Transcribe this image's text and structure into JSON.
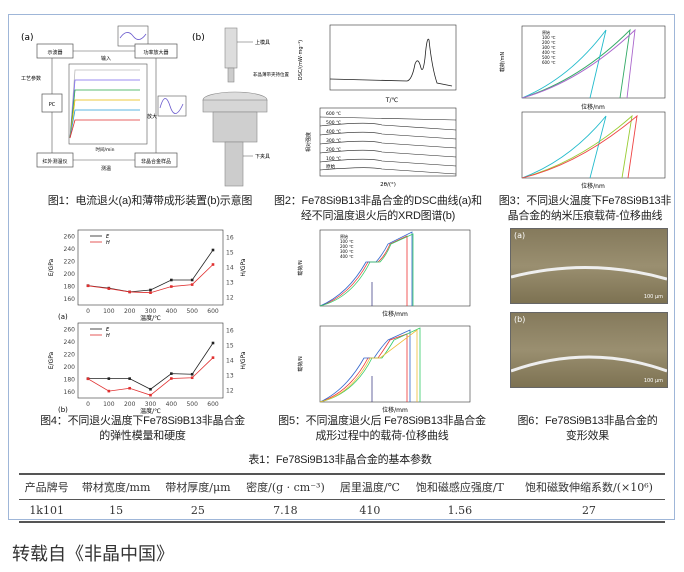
{
  "fig1": {
    "caption": "图1：电流退火(a)和薄带成形装置(b)示意图",
    "labels": {
      "a": "(a)",
      "b": "(b)",
      "signal_gen": "示波器",
      "amplifier": "功率放大器",
      "input": "输入",
      "amplify": "放大",
      "pc": "PC",
      "params": "工艺参数",
      "sample": "非晶合金样品",
      "thermometer": "红外测温仪",
      "measure": "测温",
      "upper": "上模具",
      "lower": "下夹具",
      "ribbon": "非晶薄带夹持位置",
      "inset_xlabel": "时间/min",
      "inset_ylabel": "温度/℃"
    }
  },
  "fig2": {
    "caption_line1": "图2：Fe78Si9B13非晶合金的DSC曲线(a)和",
    "caption_line2": "经不同温度退火后的XRD图谱(b)",
    "a_ylabel": "DSC/(mW·mg⁻¹)",
    "a_xlabel": "T/℃",
    "b_xlabel": "2θ/(°)",
    "b_ylabel": "相对强度",
    "b_labels": [
      "600 ℃",
      "500 ℃",
      "400 ℃",
      "300 ℃",
      "200 ℃",
      "100 ℃",
      "原始"
    ]
  },
  "fig3": {
    "caption_line1": "图3：不同退火温度下Fe78Si9B13非",
    "caption_line2": "晶合金的纳米压痕载荷-位移曲线",
    "xlabel": "位移/nm",
    "ylabel": "载荷/mN",
    "legend": [
      "原始",
      "100 ℃",
      "200 ℃",
      "300 ℃",
      "400 ℃",
      "500 ℃",
      "600 ℃"
    ]
  },
  "fig4": {
    "caption_line1": "图4：不同退火温度下Fe78Si9B13非晶合金",
    "caption_line2": "的弹性模量和硬度"
  },
  "fig5": {
    "caption_line1": "图5：不同温度退火后 Fe78Si9B13非晶合金",
    "caption_line2": "成形过程中的载荷-位移曲线",
    "xlabel": "位移/mm",
    "ylabel": "载荷/N",
    "legend": [
      "原始",
      "100 ℃",
      "200 ℃",
      "300 ℃",
      "400 ℃"
    ]
  },
  "fig6": {
    "caption_line1": "图6：Fe78Si9B13非晶合金的",
    "caption_line2": "变形效果",
    "a": "(a)",
    "b": "(b)",
    "scale": "100 μm"
  },
  "chart_data": [
    {
      "type": "line",
      "panel": "(a)",
      "x": [
        0,
        100,
        200,
        300,
        400,
        500,
        600
      ],
      "xlabel": "温度/℃",
      "ylabel": "E/GPa",
      "y2label": "H/GPa",
      "ylim": [
        150,
        270
      ],
      "y2lim": [
        11.5,
        16.5
      ],
      "series": [
        {
          "name": "E",
          "axis": "left",
          "color": "#222222",
          "values": [
            181,
            177,
            171,
            174,
            190,
            190,
            238
          ]
        },
        {
          "name": "H",
          "axis": "right",
          "color": "#e03030",
          "values": [
            12.78,
            12.59,
            12.37,
            12.32,
            12.73,
            12.86,
            14.2
          ]
        }
      ],
      "yticks": [
        160,
        180,
        200,
        220,
        240,
        260
      ],
      "y2ticks": [
        12,
        13,
        14,
        15,
        16
      ]
    },
    {
      "type": "line",
      "panel": "(b)",
      "x": [
        0,
        100,
        200,
        300,
        400,
        500,
        600
      ],
      "xlabel": "温度/℃",
      "ylabel": "E/GPa",
      "y2label": "H/GPa",
      "ylim": [
        150,
        270
      ],
      "y2lim": [
        11.5,
        16.5
      ],
      "series": [
        {
          "name": "E",
          "axis": "left",
          "color": "#222222",
          "values": [
            181,
            181,
            181,
            164,
            189,
            188,
            238
          ]
        },
        {
          "name": "H",
          "axis": "right",
          "color": "#e03030",
          "values": [
            12.78,
            11.96,
            12.15,
            11.69,
            12.8,
            12.85,
            14.19
          ]
        }
      ],
      "yticks": [
        160,
        180,
        200,
        220,
        240,
        260
      ],
      "y2ticks": [
        12,
        13,
        14,
        15,
        16
      ]
    }
  ],
  "table": {
    "title": "表1：Fe78Si9B13非晶合金的基本参数",
    "headers": [
      "产品牌号",
      "带材宽度/mm",
      "带材厚度/μm",
      "密度/(g · cm⁻³)",
      "居里温度/℃",
      "饱和磁感应强度/T",
      "饱和磁致伸缩系数/(×10⁶)"
    ],
    "rows": [
      [
        "1k101",
        "15",
        "25",
        "7.18",
        "410",
        "1.56",
        "27"
      ]
    ]
  },
  "footer": "转载自《非晶中国》"
}
